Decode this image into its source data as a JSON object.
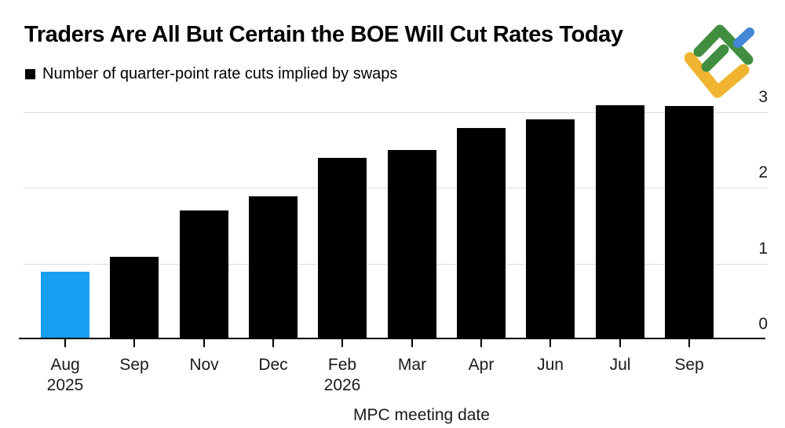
{
  "title": "Traders Are All But Certain the BOE Will Cut Rates Today",
  "legend": {
    "swatch_color": "#000000",
    "label": "Number of quarter-point rate cuts implied by swaps"
  },
  "logo": {
    "label": "LiteFinance logo",
    "green": "#418E41",
    "yellow": "#F0B431",
    "blue": "#4387D6"
  },
  "chart_data": {
    "type": "bar",
    "title": "Traders Are All But Certain the BOE Will Cut Rates Today",
    "series_label": "Number of quarter-point rate cuts implied by swaps",
    "xlabel": "MPC meeting date",
    "ylabel": "",
    "categories": [
      {
        "label": "Aug",
        "sublabel": "2025"
      },
      {
        "label": "Sep",
        "sublabel": ""
      },
      {
        "label": "Nov",
        "sublabel": ""
      },
      {
        "label": "Dec",
        "sublabel": ""
      },
      {
        "label": "Feb",
        "sublabel": "2026"
      },
      {
        "label": "Mar",
        "sublabel": ""
      },
      {
        "label": "Apr",
        "sublabel": ""
      },
      {
        "label": "Jun",
        "sublabel": ""
      },
      {
        "label": "Jul",
        "sublabel": ""
      },
      {
        "label": "Sep",
        "sublabel": ""
      }
    ],
    "values": [
      0.89,
      1.09,
      1.7,
      1.89,
      2.4,
      2.5,
      2.79,
      2.91,
      3.09,
      3.08
    ],
    "bar_color": "#000000",
    "highlight_index": 0,
    "highlight_color": "#189EF2",
    "yticks": [
      0,
      1,
      2,
      3
    ],
    "ylim": [
      0,
      3.35
    ],
    "ytick_side": "right",
    "grid": true,
    "gridline_color": "#DBDBDB",
    "axis_color": "#000000",
    "legend_position": "top-left"
  }
}
